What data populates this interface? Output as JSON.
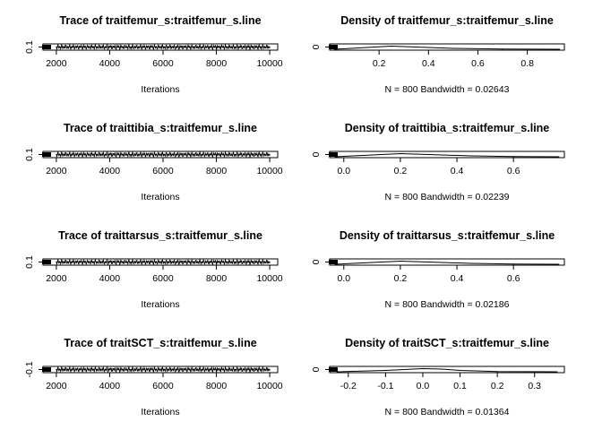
{
  "chart_data": [
    {
      "type": "line",
      "kind": "trace",
      "title": "Trace of traitfemur_s:traitfemur_s.line",
      "xlabel": "Iterations",
      "xlim": [
        1500,
        10300
      ],
      "xticks": [
        "2000",
        "4000",
        "6000",
        "8000",
        "10000"
      ],
      "yticks": [
        "0.1"
      ],
      "series": [
        {
          "x": [
            2000,
            4000,
            6000,
            8000,
            10000
          ],
          "y": [
            0.1,
            0.1,
            0.1,
            0.1,
            0.1
          ]
        }
      ]
    },
    {
      "type": "line",
      "kind": "density",
      "title": "Density of traitfemur_s:traitfemur_s.line",
      "xlabel": "N = 800   Bandwidth = 0.02643",
      "xlim": [
        0.0,
        0.95
      ],
      "xticks": [
        "0.2",
        "0.4",
        "0.6",
        "0.8"
      ],
      "yticks": [
        "0"
      ],
      "series": [
        {
          "x": [
            0.02,
            0.15,
            0.25,
            0.35,
            0.5,
            0.7,
            0.93
          ],
          "y": [
            0,
            0.4,
            0.7,
            0.5,
            0.2,
            0.05,
            0
          ]
        }
      ]
    },
    {
      "type": "line",
      "kind": "trace",
      "title": "Trace of traittibia_s:traitfemur_s.line",
      "xlabel": "Iterations",
      "xlim": [
        1500,
        10300
      ],
      "xticks": [
        "2000",
        "4000",
        "6000",
        "8000",
        "10000"
      ],
      "yticks": [
        "0.1"
      ],
      "series": [
        {
          "x": [
            2000,
            4000,
            6000,
            8000,
            10000
          ],
          "y": [
            0.1,
            0.1,
            0.1,
            0.1,
            0.1
          ]
        }
      ]
    },
    {
      "type": "line",
      "kind": "density",
      "title": "Density of traittibia_s:traitfemur_s.line",
      "xlabel": "N = 800   Bandwidth = 0.02239",
      "xlim": [
        -0.05,
        0.78
      ],
      "xticks": [
        "0.0",
        "0.2",
        "0.4",
        "0.6"
      ],
      "yticks": [
        "0"
      ],
      "series": [
        {
          "x": [
            -0.03,
            0.1,
            0.2,
            0.3,
            0.45,
            0.6,
            0.76
          ],
          "y": [
            0,
            0.4,
            0.7,
            0.5,
            0.2,
            0.05,
            0
          ]
        }
      ]
    },
    {
      "type": "line",
      "kind": "trace",
      "title": "Trace of traittarsus_s:traitfemur_s.line",
      "xlabel": "Iterations",
      "xlim": [
        1500,
        10300
      ],
      "xticks": [
        "2000",
        "4000",
        "6000",
        "8000",
        "10000"
      ],
      "yticks": [
        "0.1"
      ],
      "series": [
        {
          "x": [
            2000,
            4000,
            6000,
            8000,
            10000
          ],
          "y": [
            0.1,
            0.1,
            0.1,
            0.1,
            0.1
          ]
        }
      ]
    },
    {
      "type": "line",
      "kind": "density",
      "title": "Density of traittarsus_s:traitfemur_s.line",
      "xlabel": "N = 800   Bandwidth = 0.02186",
      "xlim": [
        -0.05,
        0.78
      ],
      "xticks": [
        "0.0",
        "0.2",
        "0.4",
        "0.6"
      ],
      "yticks": [
        "0"
      ],
      "series": [
        {
          "x": [
            -0.03,
            0.1,
            0.2,
            0.3,
            0.45,
            0.6,
            0.76
          ],
          "y": [
            0,
            0.4,
            0.7,
            0.5,
            0.2,
            0.05,
            0
          ]
        }
      ]
    },
    {
      "type": "line",
      "kind": "trace",
      "title": "Trace of traitSCT_s:traitfemur_s.line",
      "xlabel": "Iterations",
      "xlim": [
        1500,
        10300
      ],
      "xticks": [
        "2000",
        "4000",
        "6000",
        "8000",
        "10000"
      ],
      "yticks": [
        "-0.1"
      ],
      "series": [
        {
          "x": [
            2000,
            4000,
            6000,
            8000,
            10000
          ],
          "y": [
            -0.1,
            -0.1,
            -0.1,
            -0.1,
            -0.1
          ]
        }
      ]
    },
    {
      "type": "line",
      "kind": "density",
      "title": "Density of traitSCT_s:traitfemur_s.line",
      "xlabel": "N = 800   Bandwidth = 0.01364",
      "xlim": [
        -0.25,
        0.38
      ],
      "xticks": [
        "-0.2",
        "-0.1",
        "0.0",
        "0.1",
        "0.2",
        "0.3"
      ],
      "yticks": [
        "0"
      ],
      "series": [
        {
          "x": [
            -0.23,
            -0.1,
            0.0,
            0.05,
            0.1,
            0.2,
            0.36
          ],
          "y": [
            0,
            0.3,
            0.7,
            0.6,
            0.3,
            0.05,
            0
          ]
        }
      ]
    }
  ]
}
